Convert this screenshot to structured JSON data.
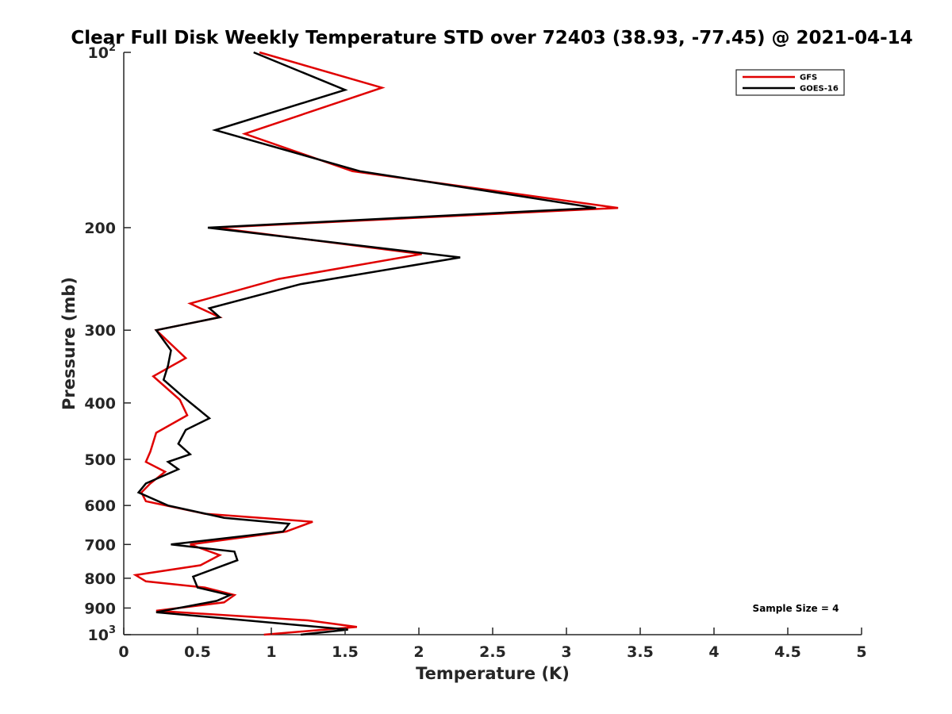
{
  "chart_data": {
    "type": "line",
    "title": "Clear Full Disk Weekly Temperature STD over 72403 (38.93, -77.45) @ 2021-04-14",
    "xlabel": "Temperature (K)",
    "ylabel": "Pressure (mb)",
    "xlim": [
      0,
      5
    ],
    "ylim": [
      1000,
      100
    ],
    "y_scale": "log",
    "y_reversed": true,
    "grid": false,
    "legend_position": "top-right",
    "annotation": "Sample Size = 4",
    "x_ticks": [
      "0",
      "0.5",
      "1",
      "1.5",
      "2",
      "2.5",
      "3",
      "3.5",
      "4",
      "4.5",
      "5"
    ],
    "x_tick_values": [
      0,
      0.5,
      1,
      1.5,
      2,
      2.5,
      3,
      3.5,
      4,
      4.5,
      5
    ],
    "y_ticks": [
      {
        "value": 100,
        "base": "10",
        "exp": "2"
      },
      {
        "value": 200,
        "label": "200"
      },
      {
        "value": 300,
        "label": "300"
      },
      {
        "value": 400,
        "label": "400"
      },
      {
        "value": 500,
        "label": "500"
      },
      {
        "value": 600,
        "label": "600"
      },
      {
        "value": 700,
        "label": "700"
      },
      {
        "value": 800,
        "label": "800"
      },
      {
        "value": 900,
        "label": "900"
      },
      {
        "value": 1000,
        "base": "10",
        "exp": "3"
      }
    ],
    "series": [
      {
        "name": "GFS",
        "color": "#e00000",
        "points": [
          [
            0.92,
            100
          ],
          [
            1.75,
            115
          ],
          [
            0.82,
            138
          ],
          [
            1.55,
            160
          ],
          [
            3.35,
            185
          ],
          [
            0.62,
            200
          ],
          [
            2.02,
            222
          ],
          [
            1.05,
            245
          ],
          [
            0.45,
            270
          ],
          [
            0.65,
            285
          ],
          [
            0.22,
            300
          ],
          [
            0.42,
            335
          ],
          [
            0.2,
            360
          ],
          [
            0.38,
            395
          ],
          [
            0.43,
            420
          ],
          [
            0.22,
            450
          ],
          [
            0.18,
            485
          ],
          [
            0.15,
            505
          ],
          [
            0.28,
            525
          ],
          [
            0.18,
            550
          ],
          [
            0.12,
            570
          ],
          [
            0.15,
            590
          ],
          [
            0.55,
            620
          ],
          [
            1.28,
            640
          ],
          [
            1.1,
            665
          ],
          [
            0.45,
            700
          ],
          [
            0.65,
            730
          ],
          [
            0.52,
            760
          ],
          [
            0.08,
            790
          ],
          [
            0.15,
            810
          ],
          [
            0.55,
            830
          ],
          [
            0.75,
            855
          ],
          [
            0.68,
            880
          ],
          [
            0.22,
            910
          ],
          [
            1.25,
            945
          ],
          [
            1.58,
            970
          ],
          [
            0.95,
            1000
          ]
        ]
      },
      {
        "name": "GOES-16",
        "color": "#000000",
        "points": [
          [
            0.88,
            100
          ],
          [
            1.5,
            116
          ],
          [
            0.62,
            136
          ],
          [
            1.6,
            160
          ],
          [
            3.2,
            185
          ],
          [
            0.57,
            200
          ],
          [
            2.28,
            225
          ],
          [
            1.2,
            250
          ],
          [
            0.58,
            275
          ],
          [
            0.65,
            285
          ],
          [
            0.22,
            300
          ],
          [
            0.32,
            325
          ],
          [
            0.3,
            345
          ],
          [
            0.27,
            365
          ],
          [
            0.4,
            390
          ],
          [
            0.58,
            425
          ],
          [
            0.42,
            445
          ],
          [
            0.37,
            470
          ],
          [
            0.45,
            490
          ],
          [
            0.3,
            505
          ],
          [
            0.37,
            520
          ],
          [
            0.15,
            550
          ],
          [
            0.1,
            570
          ],
          [
            0.3,
            600
          ],
          [
            0.68,
            630
          ],
          [
            1.12,
            645
          ],
          [
            1.08,
            665
          ],
          [
            0.32,
            700
          ],
          [
            0.75,
            720
          ],
          [
            0.77,
            745
          ],
          [
            0.47,
            795
          ],
          [
            0.5,
            830
          ],
          [
            0.72,
            855
          ],
          [
            0.63,
            875
          ],
          [
            0.22,
            915
          ],
          [
            1.52,
            980
          ],
          [
            1.2,
            1000
          ]
        ]
      }
    ]
  }
}
